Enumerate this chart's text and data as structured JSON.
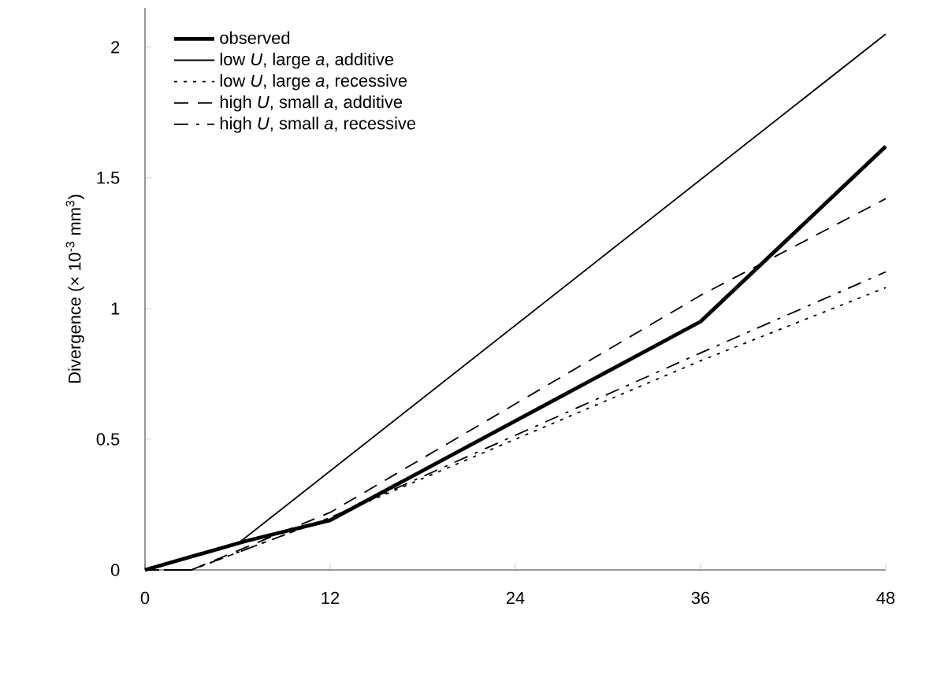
{
  "chart_data": {
    "type": "line",
    "ylabel": "Divergence  (× 10$^{-3}$ mm$^{3}$)",
    "xlim": [
      0,
      48
    ],
    "ylim": [
      0,
      2.15
    ],
    "xticks": [
      0,
      12,
      24,
      36,
      48
    ],
    "yticks": [
      0,
      0.5,
      1,
      1.5,
      2
    ],
    "legend": "top left",
    "grid": false,
    "series": [
      {
        "name": "observed",
        "color": "#000000",
        "line_style": "solid",
        "x": [
          0,
          6.5,
          12,
          36,
          48
        ],
        "values": [
          0,
          0.11,
          0.19,
          0.95,
          1.62
        ]
      },
      {
        "name": "low *U*, large *a*, additive",
        "color": "#000000",
        "line_style": "solid",
        "x": [
          0,
          6,
          48
        ],
        "values": [
          0,
          0.1,
          2.05
        ]
      },
      {
        "name": "low *U*, large *a*, recessive",
        "color": "#000000",
        "line_style": "dotted",
        "x": [
          0,
          3,
          12,
          36,
          48
        ],
        "values": [
          0,
          0,
          0.2,
          0.8,
          1.08
        ]
      },
      {
        "name": "high *U*, small *a*, additive",
        "color": "#000000",
        "line_style": "dashed",
        "x": [
          0,
          3,
          12,
          36,
          48
        ],
        "values": [
          0,
          0,
          0.22,
          1.05,
          1.42
        ]
      },
      {
        "name": "high *U*, small *a*, recessive",
        "color": "#000000",
        "line_style": "dashdot",
        "x": [
          0,
          3,
          12,
          36,
          48
        ],
        "values": [
          0,
          0,
          0.2,
          0.83,
          1.14
        ]
      }
    ]
  }
}
